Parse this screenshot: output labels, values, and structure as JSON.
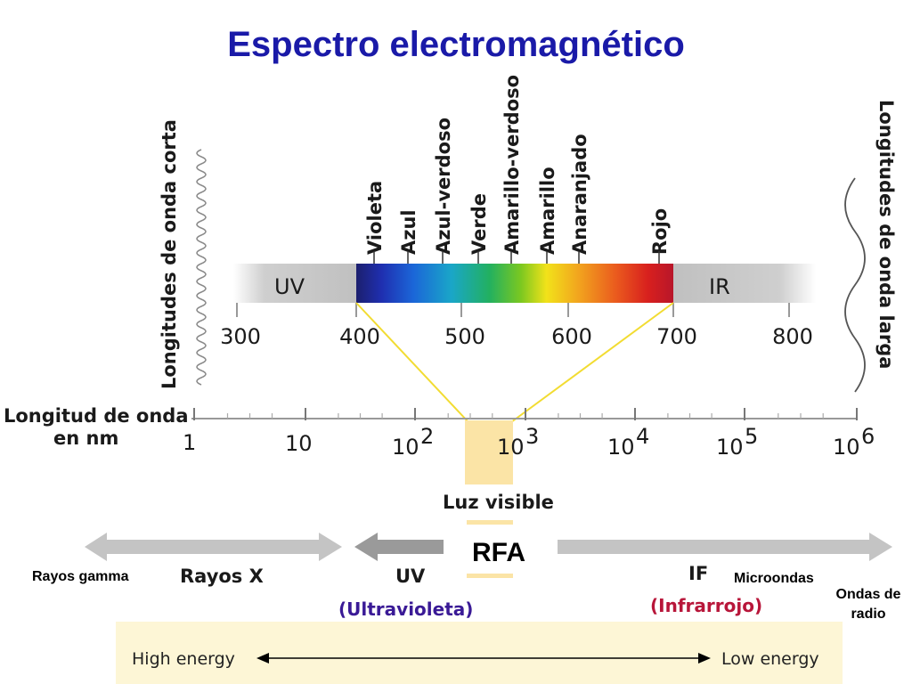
{
  "title": "Espectro electromagnético",
  "side_labels": {
    "short": "Longitudes de onda corta",
    "long": "Longitudes de onda larga"
  },
  "visible_band": {
    "left_label": "UV",
    "right_label": "IR",
    "colors": [
      "Violeta",
      "Azul",
      "Azul-verdoso",
      "Verde",
      "Amarillo-verdoso",
      "Amarillo",
      "Anaranjado",
      "Rojo"
    ],
    "scale": [
      "300",
      "400",
      "500",
      "600",
      "700",
      "800"
    ]
  },
  "log_axis": {
    "label_line1": "Longitud de onda",
    "label_line2": "en nm",
    "first": "1",
    "second": "10",
    "base": "10",
    "exponents": [
      "2",
      "3",
      "4",
      "5",
      "6"
    ]
  },
  "visible_label": "Luz visible",
  "regions": {
    "gamma": "Rayos gamma",
    "xray": "Rayos X",
    "rfa": "RFA",
    "uv": "UV",
    "uv_full": "(Ultravioleta)",
    "if": "IF",
    "if_full": "(Infrarrojo)",
    "micro": "Microondas",
    "radio_line1": "Ondas de",
    "radio_line2": "radio"
  },
  "energy": {
    "high": "High energy",
    "low": "Low energy"
  },
  "colors": {
    "title": "#1a1aa8",
    "uv_full": "#3a1a96",
    "if_full": "#b8163a",
    "band_gray": "#c8c8c8",
    "connector": "#f2dc32",
    "visible_box": "#fbe4a6"
  }
}
